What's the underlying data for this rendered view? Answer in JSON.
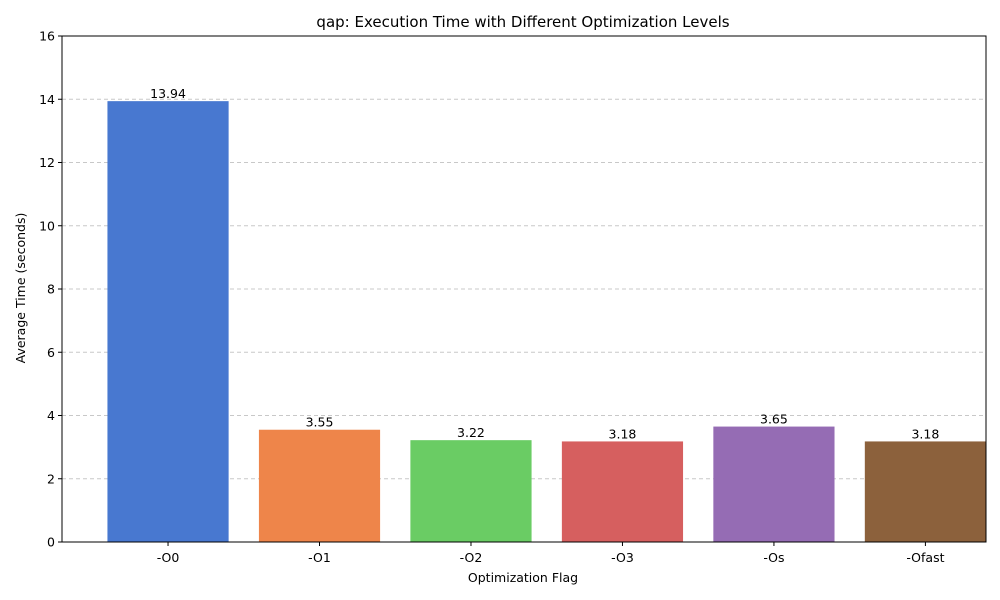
{
  "chart_data": {
    "type": "bar",
    "title": "qap: Execution Time with Different Optimization Levels",
    "xlabel": "Optimization Flag",
    "ylabel": "Average Time (seconds)",
    "categories": [
      "-O0",
      "-O1",
      "-O2",
      "-O3",
      "-Os",
      "-Ofast"
    ],
    "values": [
      13.94,
      3.55,
      3.22,
      3.18,
      3.65,
      3.18
    ],
    "value_labels": [
      "13.94",
      "3.55",
      "3.22",
      "3.18",
      "3.65",
      "3.18"
    ],
    "colors": [
      "#4878d0",
      "#ee854a",
      "#6acc64",
      "#d65f5f",
      "#956cb4",
      "#8c613c"
    ],
    "ylim": [
      0,
      16
    ],
    "yticks": [
      0,
      2,
      4,
      6,
      8,
      10,
      12,
      14,
      16
    ],
    "grid": "y-dashed",
    "legend": "none"
  }
}
